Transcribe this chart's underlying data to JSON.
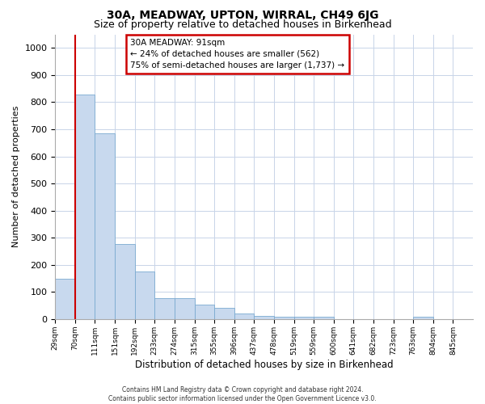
{
  "title": "30A, MEADWAY, UPTON, WIRRAL, CH49 6JG",
  "subtitle": "Size of property relative to detached houses in Birkenhead",
  "xlabel": "Distribution of detached houses by size in Birkenhead",
  "ylabel": "Number of detached properties",
  "bar_color": "#c8d9ee",
  "bar_edge_color": "#7aaad0",
  "grid_color": "#c8d4e8",
  "annotation_text": "30A MEADWAY: 91sqm\n← 24% of detached houses are smaller (562)\n75% of semi-detached houses are larger (1,737) →",
  "annotation_box_color": "#ffffff",
  "annotation_box_edge": "#cc0000",
  "vline_x": 1,
  "vline_color": "#cc0000",
  "categories": [
    "29sqm",
    "70sqm",
    "111sqm",
    "151sqm",
    "192sqm",
    "233sqm",
    "274sqm",
    "315sqm",
    "355sqm",
    "396sqm",
    "437sqm",
    "478sqm",
    "519sqm",
    "559sqm",
    "600sqm",
    "641sqm",
    "682sqm",
    "723sqm",
    "763sqm",
    "804sqm",
    "845sqm"
  ],
  "bin_edges_idx": [
    0,
    1,
    2,
    3,
    4,
    5,
    6,
    7,
    8,
    9,
    10,
    11,
    12,
    13,
    14,
    15,
    16,
    17,
    18,
    19,
    20
  ],
  "values": [
    148,
    828,
    685,
    278,
    175,
    78,
    78,
    52,
    42,
    20,
    12,
    8,
    8,
    8,
    0,
    0,
    0,
    0,
    10,
    0,
    0
  ],
  "ylim": [
    0,
    1050
  ],
  "yticks": [
    0,
    100,
    200,
    300,
    400,
    500,
    600,
    700,
    800,
    900,
    1000
  ],
  "footer_line1": "Contains HM Land Registry data © Crown copyright and database right 2024.",
  "footer_line2": "Contains public sector information licensed under the Open Government Licence v3.0.",
  "background_color": "#ffffff",
  "title_fontsize": 10,
  "subtitle_fontsize": 9
}
